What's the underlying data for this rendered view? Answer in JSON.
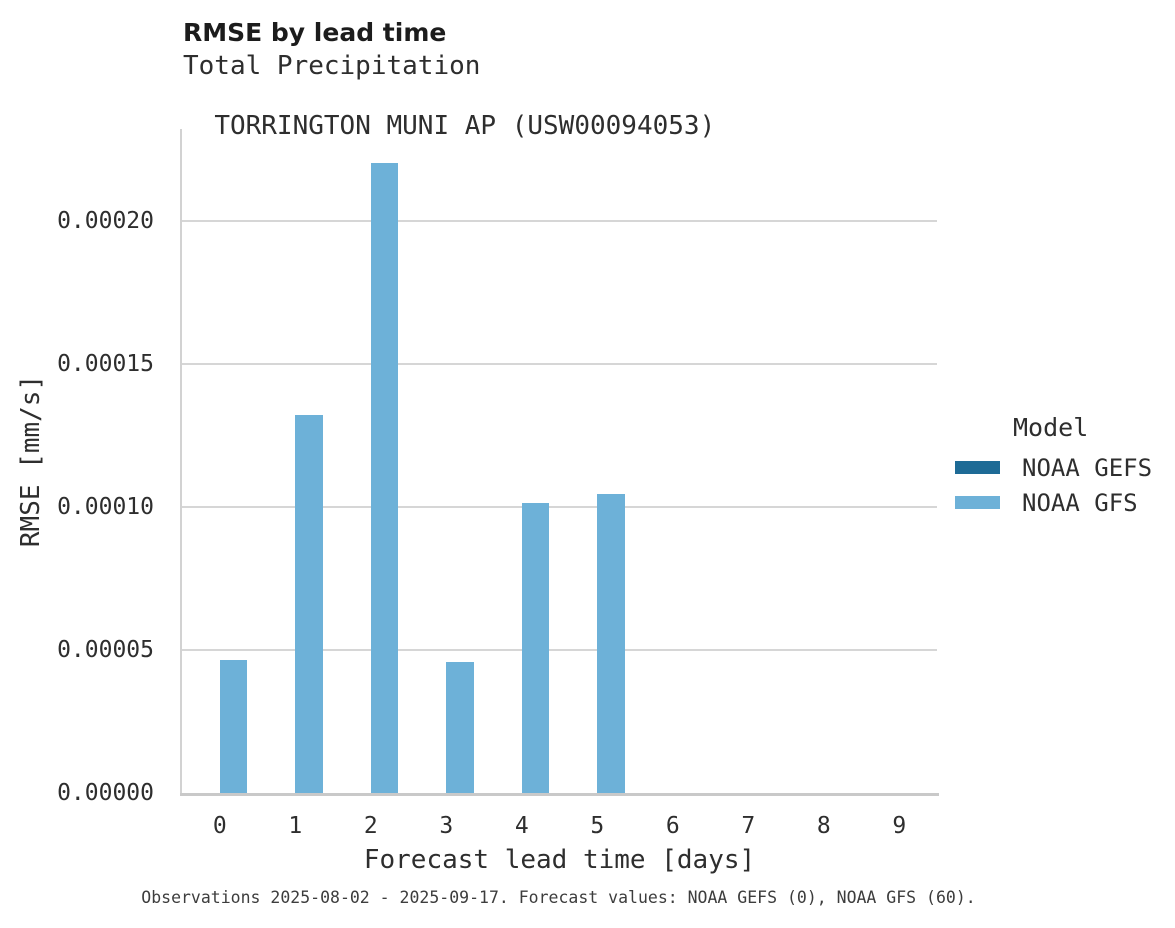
{
  "title": "RMSE by lead time",
  "subtitle_lines": [
    "Total Precipitation",
    "TORRINGTON MUNI AP (USW00094053)"
  ],
  "caption": "Observations 2025-08-02 - 2025-09-17. Forecast values: NOAA GEFS (0), NOAA GFS (60).",
  "colors": {
    "background": "#ffffff",
    "gridline": "#d6d6d6",
    "axis_spine": "#c9c9c9",
    "text": "#2e2e2e",
    "caption_text": "#3d3d3d",
    "noaa_gefs": "#1e6b96",
    "noaa_gfs": "#6db1d8"
  },
  "chart_data": {
    "type": "bar",
    "grouped": true,
    "title": "RMSE by lead time",
    "subtitle": "Total Precipitation / TORRINGTON MUNI AP (USW00094053)",
    "xlabel": "Forecast lead time [days]",
    "ylabel": "RMSE [mm/s]",
    "categories": [
      "0",
      "1",
      "2",
      "3",
      "4",
      "5",
      "6",
      "7",
      "8",
      "9"
    ],
    "series": [
      {
        "name": "NOAA GEFS",
        "color": "#1e6b96",
        "values": [
          0,
          0,
          0,
          0,
          0,
          0,
          0,
          0,
          0,
          0
        ]
      },
      {
        "name": "NOAA GFS",
        "color": "#6db1d8",
        "values": [
          4.65e-05,
          0.0001322,
          0.00022,
          4.58e-05,
          0.0001014,
          0.0001046,
          0,
          0,
          0,
          0
        ]
      }
    ],
    "ylim": [
      0,
      0.000232
    ],
    "yticks": [
      0,
      5e-05,
      0.0001,
      0.00015,
      0.0002
    ],
    "ytick_labels": [
      "0.00000",
      "0.00005",
      "0.00010",
      "0.00015",
      "0.00020"
    ],
    "grid": "horizontal-major-only",
    "legend": {
      "title": "Model",
      "position": "right"
    }
  }
}
